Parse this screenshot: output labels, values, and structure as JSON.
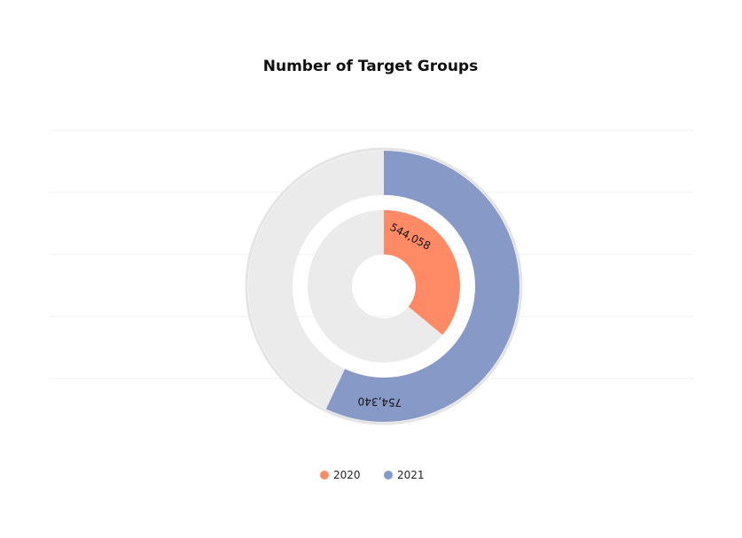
{
  "chart_data": {
    "type": "pie",
    "title": "Number of Target Groups",
    "series": [
      {
        "name": "2020",
        "value": 544058,
        "label": "544,058",
        "fraction": 0.36,
        "color": "#FF8A65"
      },
      {
        "name": "2021",
        "value": 754340,
        "label": "754,340",
        "fraction": 0.57,
        "color": "#8799C6"
      }
    ],
    "track_color": "#EBEBEB",
    "grid": true,
    "legend": "bottom-center"
  }
}
